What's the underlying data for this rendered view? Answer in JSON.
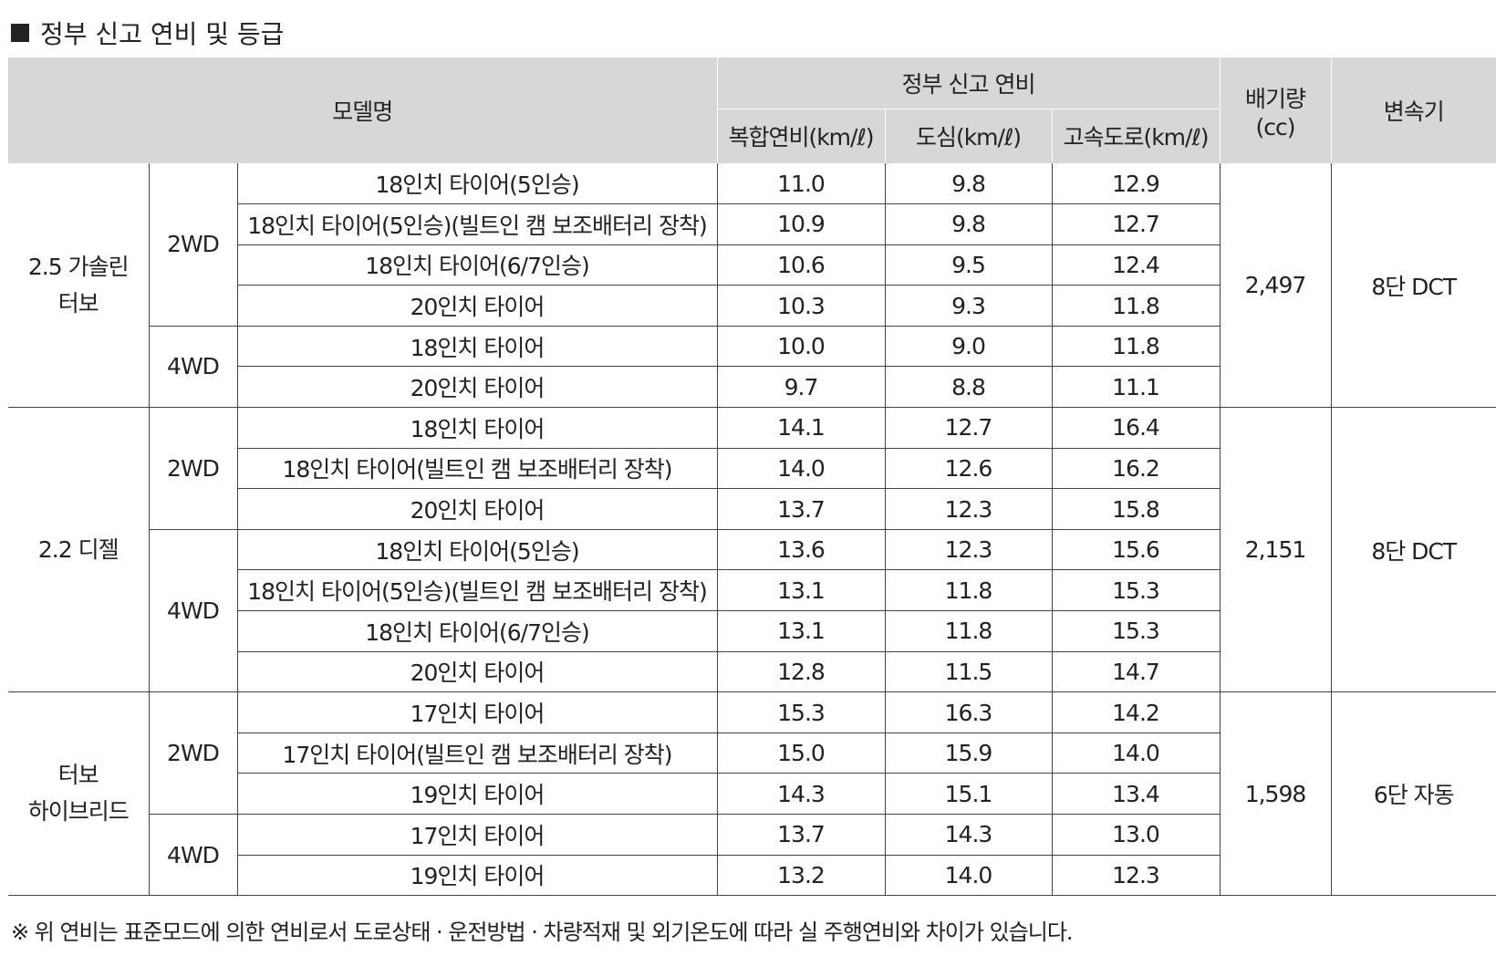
{
  "title": "정부 신고 연비 및 등급",
  "header": {
    "model": "모델명",
    "fuel_group": "정부 신고 연비",
    "combined": "복합연비(km/ℓ)",
    "city": "도심(km/ℓ)",
    "highway": "고속도로(km/ℓ)",
    "displacement_line1": "배기량",
    "displacement_line2": "(cc)",
    "transmission": "변속기"
  },
  "groups": [
    {
      "engine_line1": "2.5 가솔린",
      "engine_line2": "터보",
      "displacement": "2,497",
      "transmission": "8단 DCT",
      "drives": [
        {
          "drive": "2WD",
          "rows": [
            {
              "tire": "18인치 타이어(5인승)",
              "combined": "11.0",
              "city": "9.8",
              "highway": "12.9"
            },
            {
              "tire": "18인치 타이어(5인승)(빌트인 캠 보조배터리 장착)",
              "combined": "10.9",
              "city": "9.8",
              "highway": "12.7"
            },
            {
              "tire": "18인치 타이어(6/7인승)",
              "combined": "10.6",
              "city": "9.5",
              "highway": "12.4"
            },
            {
              "tire": "20인치 타이어",
              "combined": "10.3",
              "city": "9.3",
              "highway": "11.8"
            }
          ]
        },
        {
          "drive": "4WD",
          "rows": [
            {
              "tire": "18인치 타이어",
              "combined": "10.0",
              "city": "9.0",
              "highway": "11.8"
            },
            {
              "tire": "20인치 타이어",
              "combined": "9.7",
              "city": "8.8",
              "highway": "11.1"
            }
          ]
        }
      ]
    },
    {
      "engine_line1": "2.2 디젤",
      "engine_line2": "",
      "displacement": "2,151",
      "transmission": "8단 DCT",
      "drives": [
        {
          "drive": "2WD",
          "rows": [
            {
              "tire": "18인치 타이어",
              "combined": "14.1",
              "city": "12.7",
              "highway": "16.4"
            },
            {
              "tire": "18인치 타이어(빌트인 캠 보조배터리 장착)",
              "combined": "14.0",
              "city": "12.6",
              "highway": "16.2"
            },
            {
              "tire": "20인치 타이어",
              "combined": "13.7",
              "city": "12.3",
              "highway": "15.8"
            }
          ]
        },
        {
          "drive": "4WD",
          "rows": [
            {
              "tire": "18인치 타이어(5인승)",
              "combined": "13.6",
              "city": "12.3",
              "highway": "15.6"
            },
            {
              "tire": "18인치 타이어(5인승)(빌트인 캠 보조배터리 장착)",
              "combined": "13.1",
              "city": "11.8",
              "highway": "15.3"
            },
            {
              "tire": "18인치 타이어(6/7인승)",
              "combined": "13.1",
              "city": "11.8",
              "highway": "15.3"
            },
            {
              "tire": "20인치 타이어",
              "combined": "12.8",
              "city": "11.5",
              "highway": "14.7"
            }
          ]
        }
      ]
    },
    {
      "engine_line1": "터보",
      "engine_line2": "하이브리드",
      "displacement": "1,598",
      "transmission": "6단 자동",
      "drives": [
        {
          "drive": "2WD",
          "rows": [
            {
              "tire": "17인치 타이어",
              "combined": "15.3",
              "city": "16.3",
              "highway": "14.2"
            },
            {
              "tire": "17인치 타이어(빌트인 캠 보조배터리 장착)",
              "combined": "15.0",
              "city": "15.9",
              "highway": "14.0"
            },
            {
              "tire": "19인치 타이어",
              "combined": "14.3",
              "city": "15.1",
              "highway": "13.4"
            }
          ]
        },
        {
          "drive": "4WD",
          "rows": [
            {
              "tire": "17인치 타이어",
              "combined": "13.7",
              "city": "14.3",
              "highway": "13.0"
            },
            {
              "tire": "19인치 타이어",
              "combined": "13.2",
              "city": "14.0",
              "highway": "12.3"
            }
          ]
        }
      ]
    }
  ],
  "footnote": "※ 위 연비는 표준모드에 의한 연비로서 도로상태 · 운전방법 · 차량적재 및 외기온도에 따라 실 주행연비와 차이가 있습니다."
}
